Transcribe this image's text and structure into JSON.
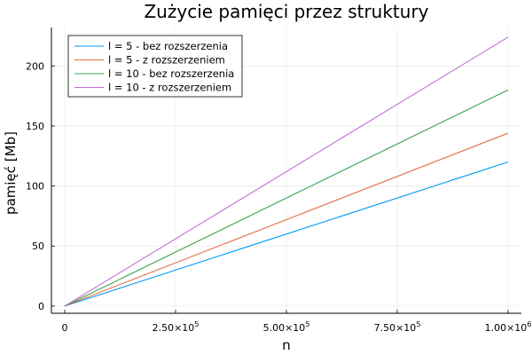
{
  "chart_data": {
    "type": "line",
    "title": "Zużycie pamięci przez struktury",
    "xlabel": "n",
    "ylabel": "pamięć [Mb]",
    "xlim": [
      -30000,
      1030000
    ],
    "ylim": [
      -6,
      232
    ],
    "x_ticks": [
      {
        "value": 0,
        "label": "0",
        "exp": ""
      },
      {
        "value": 250000,
        "label": "2.50×10",
        "exp": "5"
      },
      {
        "value": 500000,
        "label": "5.00×10",
        "exp": "5"
      },
      {
        "value": 750000,
        "label": "7.50×10",
        "exp": "5"
      },
      {
        "value": 1000000,
        "label": "1.00×10",
        "exp": "6"
      }
    ],
    "y_ticks": [
      {
        "value": 0,
        "label": "0"
      },
      {
        "value": 50,
        "label": "50"
      },
      {
        "value": 100,
        "label": "100"
      },
      {
        "value": 150,
        "label": "150"
      },
      {
        "value": 200,
        "label": "200"
      }
    ],
    "grid": true,
    "legend_position": "top-left",
    "series": [
      {
        "name": "l = 5 - bez rozszerzenia",
        "color": "#009af9",
        "x": [
          0,
          1000000
        ],
        "y": [
          0,
          120
        ]
      },
      {
        "name": "l = 5 - z rozszerzeniem",
        "color": "#e26f46",
        "x": [
          0,
          1000000
        ],
        "y": [
          0,
          144
        ]
      },
      {
        "name": "l = 10 - bez rozszerzenia",
        "color": "#3da44d",
        "x": [
          0,
          1000000
        ],
        "y": [
          0,
          180
        ]
      },
      {
        "name": "l = 10 - z rozszerzeniem",
        "color": "#c271d2",
        "x": [
          0,
          1000000
        ],
        "y": [
          0,
          224
        ]
      }
    ]
  }
}
